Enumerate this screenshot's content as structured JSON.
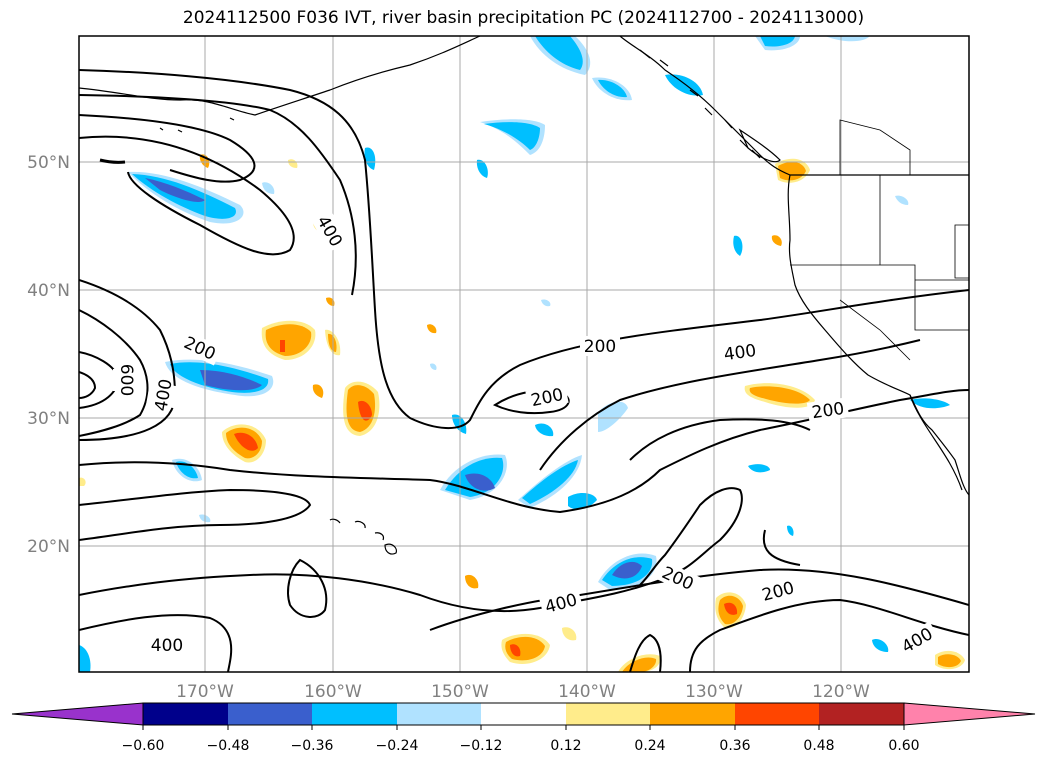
{
  "title": "2024112500 F036 IVT, river basin precipitation PC (2024112700 - 2024113000)",
  "axes": {
    "lat_labels": [
      "50°N",
      "40°N",
      "30°N",
      "20°N"
    ],
    "lon_labels": [
      "170°W",
      "160°W",
      "150°W",
      "140°W",
      "130°W",
      "120°W"
    ]
  },
  "contour_labels": [
    "400",
    "200",
    "600",
    "400",
    "200",
    "200",
    "200",
    "400",
    "200",
    "200",
    "400",
    "200",
    "400",
    "400"
  ],
  "colorbar": {
    "ticks": [
      "−0.60",
      "−0.48",
      "−0.36",
      "−0.24",
      "−0.12",
      "0.12",
      "0.24",
      "0.36",
      "0.48",
      "0.60"
    ],
    "colors": [
      "#9932cc",
      "#00008b",
      "#3a5fcd",
      "#00bfff",
      "#b0e2ff",
      "#ffffff",
      "#ffec8b",
      "#ffa500",
      "#ff4500",
      "#b22222",
      "#ff82ab"
    ]
  },
  "colors": {
    "grid": "#a9a9a9",
    "contour": "#000000",
    "coast": "#000000"
  }
}
